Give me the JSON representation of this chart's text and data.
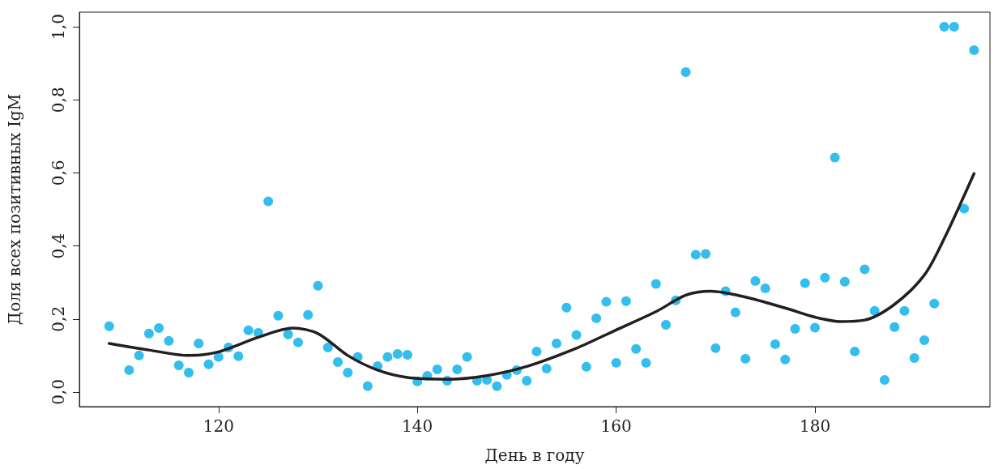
{
  "chart_data": {
    "type": "scatter",
    "xlabel": "День в году",
    "ylabel": "Доля всех позитивных IgM",
    "xlim": [
      106,
      197.6
    ],
    "ylim": [
      -0.04,
      1.04
    ],
    "xticks": [
      120,
      140,
      160,
      180
    ],
    "yticks": [
      {
        "value": 0,
        "label": "0,0"
      },
      {
        "value": 0.2,
        "label": "0,2"
      },
      {
        "value": 0.4,
        "label": "0,4"
      },
      {
        "value": 0.6,
        "label": "0,6"
      },
      {
        "value": 0.8,
        "label": "0,8"
      },
      {
        "value": 1,
        "label": "1,0"
      }
    ],
    "grid": false,
    "marker": "circle",
    "series": [
      {
        "type": "scatter",
        "color": "#00aee8",
        "x": [
          109,
          111,
          112,
          113,
          114,
          115,
          116,
          117,
          118,
          119,
          120,
          121,
          122,
          123,
          124,
          125,
          126,
          127,
          128,
          129,
          130,
          131,
          132,
          133,
          134,
          135,
          136,
          137,
          138,
          139,
          140,
          141,
          142,
          143,
          144,
          145,
          146,
          147,
          148,
          149,
          150,
          151,
          152,
          153,
          154,
          155,
          156,
          157,
          158,
          159,
          160,
          161,
          162,
          163,
          164,
          165,
          166,
          167,
          168,
          169,
          170,
          171,
          172,
          173,
          174,
          175,
          176,
          177,
          178,
          179,
          180,
          181,
          182,
          183,
          184,
          185,
          186,
          187,
          188,
          189,
          190,
          191,
          192,
          193,
          194,
          195,
          196
        ],
        "values": [
          0.18,
          0.06,
          0.1,
          0.16,
          0.175,
          0.14,
          0.073,
          0.053,
          0.133,
          0.076,
          0.096,
          0.122,
          0.098,
          0.169,
          0.162,
          0.522,
          0.209,
          0.158,
          0.136,
          0.211,
          0.291,
          0.122,
          0.082,
          0.053,
          0.096,
          0.016,
          0.071,
          0.096,
          0.104,
          0.102,
          0.029,
          0.044,
          0.062,
          0.031,
          0.062,
          0.096,
          0.031,
          0.033,
          0.016,
          0.047,
          0.06,
          0.031,
          0.111,
          0.064,
          0.133,
          0.231,
          0.156,
          0.069,
          0.202,
          0.247,
          0.08,
          0.249,
          0.118,
          0.08,
          0.296,
          0.184,
          0.251,
          0.876,
          0.376,
          0.378,
          0.12,
          0.276,
          0.218,
          0.091,
          0.304,
          0.284,
          0.131,
          0.089,
          0.173,
          0.298,
          0.176,
          0.313,
          0.642,
          0.302,
          0.111,
          0.336,
          0.222,
          0.033,
          0.178,
          0.222,
          0.093,
          0.142,
          0.242,
          1.0,
          1.0,
          0.502,
          0.936
        ]
      },
      {
        "type": "line",
        "color": "#231f20",
        "marker": "none",
        "x": [
          109,
          113,
          117,
          120,
          124,
          127.5,
          130,
          133,
          136,
          139,
          143,
          147,
          151,
          156,
          160,
          164,
          167,
          169.5,
          173,
          177,
          180,
          182.5,
          185,
          188,
          191,
          193,
          196
        ],
        "values": [
          0.133,
          0.115,
          0.1,
          0.11,
          0.15,
          0.175,
          0.16,
          0.1,
          0.06,
          0.04,
          0.035,
          0.045,
          0.07,
          0.12,
          0.17,
          0.22,
          0.265,
          0.276,
          0.26,
          0.23,
          0.205,
          0.193,
          0.197,
          0.24,
          0.32,
          0.42,
          0.598
        ]
      }
    ]
  }
}
